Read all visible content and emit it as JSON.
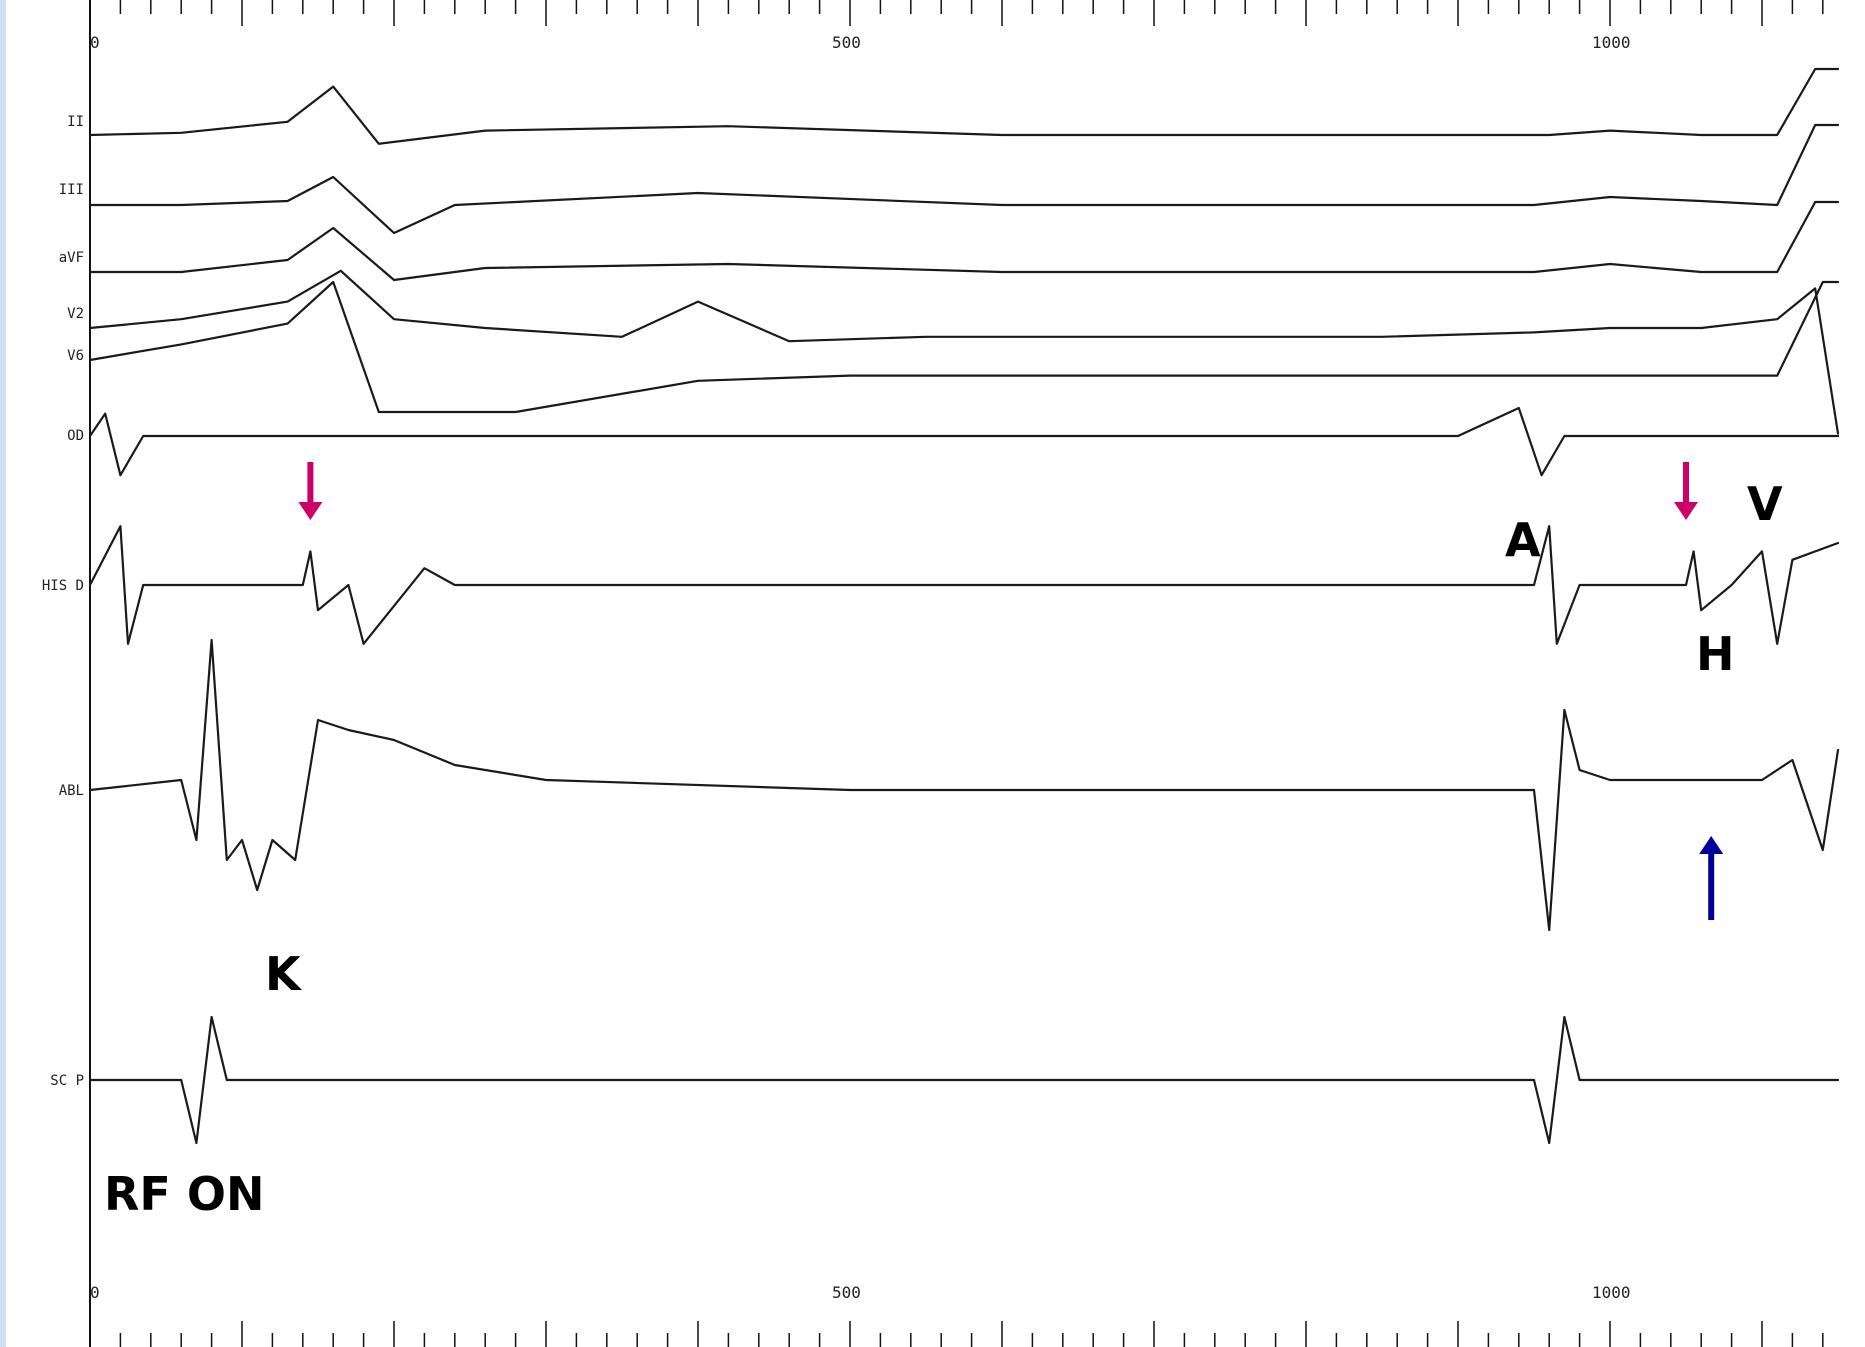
{
  "chart_data": {
    "type": "line",
    "title": "",
    "x_unit": "ms",
    "xlim": [
      0,
      1150
    ],
    "top_scale_labels": [
      "0",
      "500",
      "1000"
    ],
    "bottom_scale_labels": [
      "0",
      "500",
      "1000"
    ],
    "grid": false,
    "series": [
      {
        "name": "II",
        "points": [
          [
            0,
            0
          ],
          [
            60,
            1
          ],
          [
            130,
            6
          ],
          [
            160,
            22
          ],
          [
            190,
            -4
          ],
          [
            260,
            2
          ],
          [
            420,
            4
          ],
          [
            600,
            0
          ],
          [
            800,
            0
          ],
          [
            950,
            0
          ],
          [
            960,
            0
          ],
          [
            1000,
            2
          ],
          [
            1060,
            0
          ],
          [
            1110,
            0
          ],
          [
            1135,
            30
          ],
          [
            1150,
            30
          ]
        ]
      },
      {
        "name": "III",
        "points": [
          [
            0,
            0
          ],
          [
            60,
            0
          ],
          [
            130,
            2
          ],
          [
            160,
            14
          ],
          [
            200,
            -14
          ],
          [
            240,
            0
          ],
          [
            400,
            6
          ],
          [
            600,
            0
          ],
          [
            950,
            0
          ],
          [
            1000,
            4
          ],
          [
            1060,
            2
          ],
          [
            1110,
            0
          ],
          [
            1135,
            40
          ],
          [
            1150,
            40
          ]
        ]
      },
      {
        "name": "aVF",
        "points": [
          [
            0,
            0
          ],
          [
            60,
            0
          ],
          [
            130,
            6
          ],
          [
            160,
            22
          ],
          [
            200,
            -4
          ],
          [
            260,
            2
          ],
          [
            420,
            4
          ],
          [
            600,
            0
          ],
          [
            800,
            0
          ],
          [
            950,
            0
          ],
          [
            1000,
            4
          ],
          [
            1060,
            0
          ],
          [
            1110,
            0
          ],
          [
            1135,
            35
          ],
          [
            1150,
            35
          ]
        ]
      },
      {
        "name": "V2",
        "points": [
          [
            0,
            0
          ],
          [
            60,
            4
          ],
          [
            130,
            12
          ],
          [
            165,
            26
          ],
          [
            200,
            4
          ],
          [
            260,
            0
          ],
          [
            350,
            -4
          ],
          [
            400,
            12
          ],
          [
            460,
            -6
          ],
          [
            550,
            -4
          ],
          [
            650,
            -4
          ],
          [
            750,
            -4
          ],
          [
            850,
            -4
          ],
          [
            950,
            -2
          ],
          [
            1000,
            0
          ],
          [
            1060,
            0
          ],
          [
            1110,
            4
          ],
          [
            1135,
            18
          ],
          [
            1150,
            -48
          ]
        ]
      },
      {
        "name": "V6",
        "points": [
          [
            0,
            0
          ],
          [
            60,
            6
          ],
          [
            130,
            14
          ],
          [
            160,
            30
          ],
          [
            190,
            -20
          ],
          [
            280,
            -20
          ],
          [
            400,
            -8
          ],
          [
            500,
            -6
          ],
          [
            600,
            -6
          ],
          [
            800,
            -6
          ],
          [
            950,
            -6
          ],
          [
            1000,
            -6
          ],
          [
            1110,
            -6
          ],
          [
            1140,
            30
          ],
          [
            1150,
            30
          ]
        ]
      },
      {
        "name": "OD",
        "points": [
          [
            0,
            0
          ],
          [
            10,
            8
          ],
          [
            20,
            -14
          ],
          [
            35,
            0
          ],
          [
            300,
            0
          ],
          [
            900,
            0
          ],
          [
            940,
            10
          ],
          [
            955,
            -14
          ],
          [
            970,
            0
          ],
          [
            1150,
            0
          ]
        ]
      },
      {
        "name": "HIS D",
        "points": [
          [
            0,
            0
          ],
          [
            20,
            14
          ],
          [
            25,
            -14
          ],
          [
            35,
            0
          ],
          [
            140,
            0
          ],
          [
            145,
            8
          ],
          [
            150,
            -6
          ],
          [
            170,
            0
          ],
          [
            180,
            -14
          ],
          [
            220,
            4
          ],
          [
            240,
            0
          ],
          [
            300,
            0
          ],
          [
            950,
            0
          ],
          [
            960,
            14
          ],
          [
            965,
            -14
          ],
          [
            980,
            0
          ],
          [
            1050,
            0
          ],
          [
            1055,
            8
          ],
          [
            1060,
            -6
          ],
          [
            1080,
            0
          ],
          [
            1100,
            8
          ],
          [
            1110,
            -14
          ],
          [
            1120,
            6
          ],
          [
            1150,
            10
          ]
        ]
      },
      {
        "name": "ABL",
        "points": [
          [
            0,
            0
          ],
          [
            60,
            2
          ],
          [
            70,
            -10
          ],
          [
            80,
            30
          ],
          [
            90,
            -14
          ],
          [
            100,
            -10
          ],
          [
            110,
            -20
          ],
          [
            120,
            -10
          ],
          [
            135,
            -14
          ],
          [
            150,
            14
          ],
          [
            170,
            12
          ],
          [
            200,
            10
          ],
          [
            240,
            5
          ],
          [
            300,
            2
          ],
          [
            500,
            0
          ],
          [
            700,
            0
          ],
          [
            950,
            0
          ],
          [
            960,
            -28
          ],
          [
            970,
            16
          ],
          [
            980,
            4
          ],
          [
            1000,
            2
          ],
          [
            1100,
            2
          ],
          [
            1120,
            6
          ],
          [
            1140,
            -12
          ],
          [
            1150,
            8
          ]
        ]
      },
      {
        "name": "SC P",
        "points": [
          [
            0,
            0
          ],
          [
            60,
            0
          ],
          [
            70,
            -14
          ],
          [
            80,
            14
          ],
          [
            90,
            0
          ],
          [
            300,
            0
          ],
          [
            950,
            0
          ],
          [
            960,
            -14
          ],
          [
            970,
            14
          ],
          [
            980,
            0
          ],
          [
            1150,
            0
          ]
        ]
      }
    ],
    "annotations": [
      "A",
      "H",
      "V",
      "K",
      "RF ON"
    ],
    "marker_arrows": [
      {
        "color": "#cc0066",
        "direction": "down",
        "x_ms": 145
      },
      {
        "color": "#cc0066",
        "direction": "down",
        "x_ms": 1050
      },
      {
        "color": "#000099",
        "direction": "up",
        "x_ms": 1060
      }
    ],
    "colors": {
      "trace": "#1a1a1a",
      "arrow_magenta": "#cc0066",
      "arrow_blue": "#000099",
      "side_band": "#cfe2f3"
    }
  }
}
